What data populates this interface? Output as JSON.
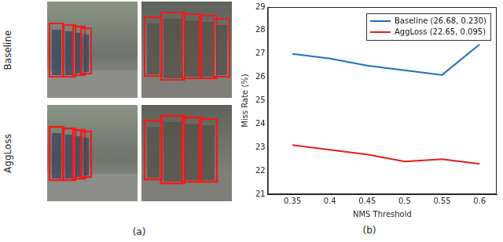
{
  "figure": {
    "row_labels": [
      "Baseline",
      "AggLoss"
    ],
    "panel_labels": [
      "(a)",
      "(b)"
    ]
  },
  "chart_data": {
    "type": "line",
    "x": [
      0.35,
      0.4,
      0.45,
      0.5,
      0.55,
      0.6
    ],
    "series": [
      {
        "name": "Baseline (26.68, 0.230)",
        "color": "#1f6fbf",
        "values": [
          27.0,
          26.8,
          26.5,
          26.3,
          26.1,
          27.4
        ]
      },
      {
        "name": "AggLoss (22.65, 0.095)",
        "color": "#e0201b",
        "values": [
          23.1,
          22.9,
          22.7,
          22.4,
          22.5,
          22.3
        ]
      }
    ],
    "x_label": "NMS Threshold",
    "y_label": "Miss Rate (%)",
    "xlim": [
      0.317,
      0.623
    ],
    "xticks": [
      0.35,
      0.4,
      0.45,
      0.5,
      0.55,
      0.6
    ],
    "ylim": [
      21,
      29
    ],
    "yticks": [
      21,
      22,
      23,
      24,
      25,
      26,
      27,
      28,
      29
    ],
    "grid": false,
    "legend": "top right"
  }
}
